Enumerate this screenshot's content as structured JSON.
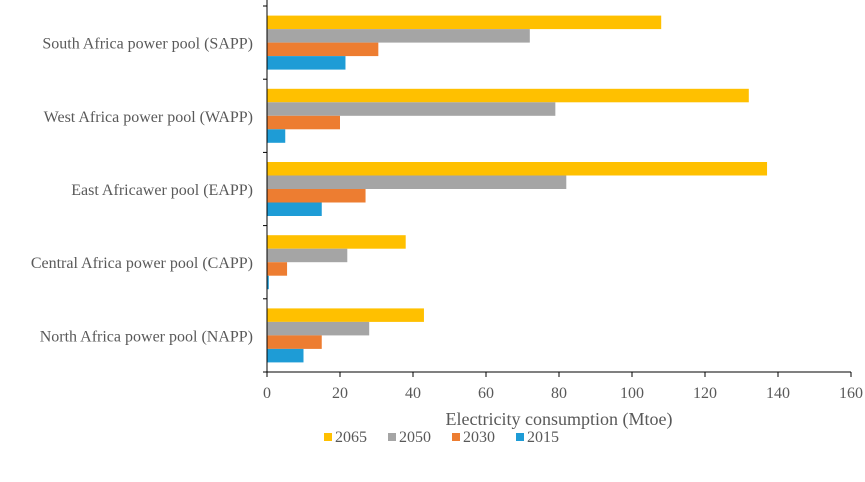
{
  "chart_data": {
    "type": "bar",
    "orientation": "horizontal",
    "title": "",
    "xlabel": "Electricity consumption (Mtoe)",
    "ylabel": "",
    "xlim": [
      0,
      160
    ],
    "xticks": [
      0,
      20,
      40,
      60,
      80,
      100,
      120,
      140,
      160
    ],
    "grid": false,
    "legend_position": "bottom",
    "categories": [
      "South Africa power pool (SAPP)",
      "West Africa power pool (WAPP)",
      "East Africawer pool (EAPP)",
      "Central Africa power pool (CAPP)",
      "North Africa power pool (NAPP)"
    ],
    "series": [
      {
        "name": "2065",
        "color": "#FFC000",
        "values": [
          108,
          132,
          137,
          38,
          43
        ]
      },
      {
        "name": "2050",
        "color": "#A5A5A5",
        "values": [
          72,
          79,
          82,
          22,
          28
        ]
      },
      {
        "name": "2030",
        "color": "#ED7D31",
        "values": [
          30.5,
          20,
          27,
          5.5,
          15
        ]
      },
      {
        "name": "2015",
        "color": "#1E9CD6",
        "values": [
          21.5,
          5,
          15,
          0.5,
          10
        ]
      }
    ]
  }
}
